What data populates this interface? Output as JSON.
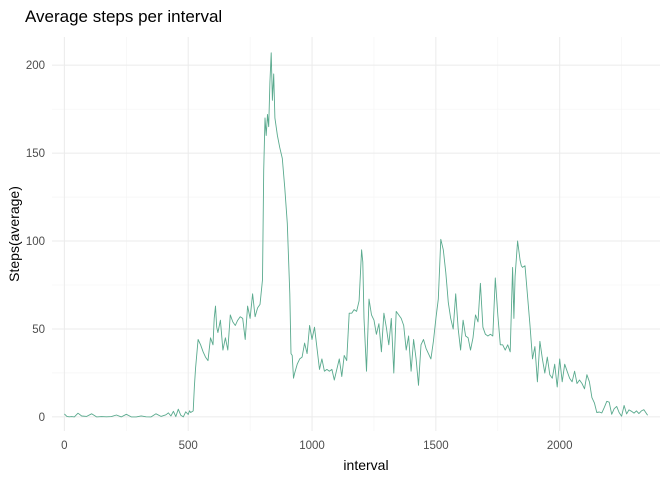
{
  "chart_data": {
    "type": "line",
    "title": "Average steps per interval",
    "xlabel": "interval",
    "ylabel": "Steps(average)",
    "xlim": [
      -50,
      2405
    ],
    "ylim": [
      -8,
      216
    ],
    "xticks": [
      0,
      500,
      1000,
      1500,
      2000
    ],
    "yticks": [
      0,
      50,
      100,
      150,
      200
    ],
    "grid": true,
    "series": [
      {
        "color": "#5aaa8e",
        "x": [
          0,
          10,
          20,
          30,
          40,
          55,
          70,
          90,
          110,
          130,
          150,
          170,
          190,
          210,
          230,
          250,
          270,
          290,
          310,
          330,
          350,
          370,
          390,
          410,
          420,
          430,
          440,
          450,
          460,
          470,
          480,
          490,
          500,
          505,
          510,
          520,
          525,
          530,
          540,
          550,
          560,
          570,
          580,
          590,
          600,
          605,
          610,
          615,
          620,
          630,
          640,
          650,
          660,
          670,
          680,
          690,
          700,
          710,
          720,
          730,
          740,
          750,
          760,
          770,
          780,
          790,
          800,
          805,
          810,
          815,
          820,
          825,
          830,
          835,
          840,
          845,
          850,
          860,
          870,
          880,
          890,
          900,
          910,
          915,
          920,
          925,
          930,
          940,
          950,
          960,
          970,
          980,
          990,
          1000,
          1010,
          1020,
          1030,
          1040,
          1050,
          1060,
          1070,
          1080,
          1090,
          1100,
          1110,
          1120,
          1130,
          1140,
          1150,
          1160,
          1170,
          1180,
          1190,
          1200,
          1205,
          1210,
          1220,
          1230,
          1240,
          1250,
          1260,
          1270,
          1280,
          1290,
          1300,
          1310,
          1320,
          1330,
          1340,
          1350,
          1360,
          1370,
          1380,
          1390,
          1400,
          1410,
          1420,
          1430,
          1440,
          1450,
          1460,
          1470,
          1480,
          1490,
          1500,
          1510,
          1520,
          1530,
          1540,
          1545,
          1550,
          1560,
          1570,
          1580,
          1590,
          1600,
          1610,
          1620,
          1630,
          1640,
          1650,
          1660,
          1670,
          1680,
          1690,
          1700,
          1710,
          1720,
          1730,
          1740,
          1750,
          1760,
          1770,
          1780,
          1790,
          1800,
          1810,
          1815,
          1820,
          1830,
          1840,
          1845,
          1850,
          1860,
          1870,
          1880,
          1890,
          1900,
          1910,
          1920,
          1930,
          1940,
          1950,
          1960,
          1970,
          1980,
          1990,
          2000,
          2010,
          2020,
          2030,
          2040,
          2050,
          2060,
          2070,
          2080,
          2090,
          2100,
          2110,
          2120,
          2130,
          2140,
          2150,
          2160,
          2170,
          2180,
          2190,
          2200,
          2210,
          2220,
          2230,
          2240,
          2250,
          2260,
          2270,
          2280,
          2290,
          2300,
          2310,
          2320,
          2330,
          2340,
          2355
        ],
        "y": [
          1.7,
          0.3,
          0.1,
          0.2,
          0,
          2.1,
          0.5,
          0.3,
          1.8,
          0,
          0.2,
          0.1,
          0.2,
          1.1,
          0,
          1.5,
          0,
          0,
          0.6,
          0.1,
          0,
          1.8,
          0.3,
          1.2,
          2.3,
          0.5,
          3.2,
          0.2,
          4.4,
          0.9,
          0,
          2.9,
          1.4,
          3.5,
          2.5,
          3.4,
          17.5,
          28,
          44,
          41,
          37,
          34,
          32,
          45,
          41,
          56,
          63,
          51,
          48,
          55,
          38,
          45,
          38,
          58,
          54,
          52,
          55,
          57,
          56,
          44,
          63,
          56,
          70,
          57,
          62,
          64,
          78,
          140,
          170,
          160,
          172,
          165,
          190,
          207,
          180,
          195,
          170,
          160,
          153,
          147,
          130,
          110,
          70,
          36,
          35,
          22,
          25,
          30,
          33,
          34,
          42,
          36,
          52,
          44,
          51,
          39,
          27,
          33,
          26,
          27,
          26,
          27,
          21,
          27,
          33,
          23,
          35,
          32,
          59,
          59,
          61,
          60,
          66,
          95,
          88,
          56,
          26,
          67,
          58,
          55,
          47,
          53,
          37,
          59,
          51,
          41,
          56,
          25,
          60,
          58,
          56,
          52,
          38,
          46,
          26,
          44,
          33,
          18,
          41,
          44,
          39,
          36,
          33,
          43,
          56,
          67,
          101,
          95,
          82,
          74,
          65,
          56,
          50,
          70,
          50,
          38,
          55,
          46,
          45,
          38,
          45,
          58,
          54,
          76,
          51,
          47,
          46,
          47,
          46,
          79,
          58,
          41,
          41,
          38,
          41,
          37,
          85,
          56,
          80,
          100,
          89,
          86,
          85,
          86,
          69,
          52,
          33,
          40,
          20,
          43,
          33,
          25,
          34,
          24,
          22,
          30,
          17,
          33,
          20,
          30,
          26,
          22,
          20,
          26,
          19,
          21,
          19,
          16,
          24,
          20,
          11,
          8,
          2.5,
          2.8,
          2.3,
          5.4,
          8.9,
          8.4,
          1.5,
          4.7,
          6,
          2.5,
          0.4,
          6.5,
          1.7,
          4,
          3.2,
          2.2,
          3.4,
          1.9,
          3.4,
          4.1,
          0.9
        ],
        "hover_note": ""
      }
    ]
  }
}
